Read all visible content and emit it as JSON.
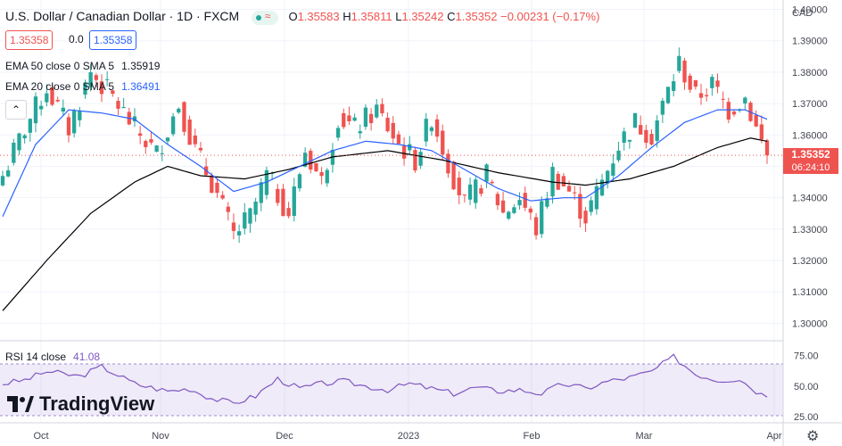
{
  "header": {
    "symbol_title": "U.S. Dollar / Canadian Dollar · 1D · FXCM",
    "open_label": "O",
    "open": "1.35583",
    "high_label": "H",
    "high": "1.35811",
    "low_label": "L",
    "low": "1.35242",
    "close_label": "C",
    "close": "1.35352",
    "change": "−0.00231 (−0.17%)"
  },
  "price_boxes": {
    "sell": "1.35358",
    "spread": "0.0",
    "buy": "1.35358"
  },
  "indicators": {
    "ema50_label": "EMA 50 close 0 SMA 5",
    "ema50_value": "1.35919",
    "ema20_label": "EMA 20 close 0 SMA 5",
    "ema20_value": "1.36491",
    "rsi_label": "RSI 14 close",
    "rsi_value": "41.08"
  },
  "axis": {
    "currency": "CAD",
    "price_ticks": [
      "1.40000",
      "1.39000",
      "1.38000",
      "1.37000",
      "1.36000",
      "1.35000",
      "1.34000",
      "1.33000",
      "1.32000",
      "1.31000",
      "1.30000"
    ],
    "rsi_ticks": [
      "75.00",
      "50.00",
      "25.00"
    ],
    "time_labels": [
      "Oct",
      "Nov",
      "Dec",
      "2023",
      "Feb",
      "Mar",
      "Apr"
    ]
  },
  "current_price": {
    "price": "1.35352",
    "countdown": "06:24:10"
  },
  "brand": {
    "name": "TradingView"
  },
  "colors": {
    "up": "#26a69a",
    "down": "#ef5350",
    "ema20": "#2962ff",
    "ema50": "#000000",
    "rsi": "#7e57c2"
  },
  "chart_data": {
    "type": "candlestick",
    "title": "U.S. Dollar / Canadian Dollar · 1D · FXCM",
    "y_range": [
      1.295,
      1.403
    ],
    "rsi_range": [
      20,
      85
    ],
    "anchors": [
      {
        "i": 0,
        "p": 1.347
      },
      {
        "i": 4,
        "p": 1.362
      },
      {
        "i": 8,
        "p": 1.375
      },
      {
        "i": 12,
        "p": 1.362
      },
      {
        "i": 16,
        "p": 1.38
      },
      {
        "i": 20,
        "p": 1.372
      },
      {
        "i": 24,
        "p": 1.362
      },
      {
        "i": 28,
        "p": 1.354
      },
      {
        "i": 32,
        "p": 1.37
      },
      {
        "i": 35,
        "p": 1.355
      },
      {
        "i": 38,
        "p": 1.345
      },
      {
        "i": 42,
        "p": 1.328
      },
      {
        "i": 45,
        "p": 1.334
      },
      {
        "i": 48,
        "p": 1.347
      },
      {
        "i": 52,
        "p": 1.335
      },
      {
        "i": 55,
        "p": 1.355
      },
      {
        "i": 58,
        "p": 1.345
      },
      {
        "i": 61,
        "p": 1.366
      },
      {
        "i": 64,
        "p": 1.362
      },
      {
        "i": 68,
        "p": 1.368
      },
      {
        "i": 72,
        "p": 1.357
      },
      {
        "i": 75,
        "p": 1.352
      },
      {
        "i": 78,
        "p": 1.366
      },
      {
        "i": 81,
        "p": 1.351
      },
      {
        "i": 84,
        "p": 1.338
      },
      {
        "i": 88,
        "p": 1.347
      },
      {
        "i": 91,
        "p": 1.335
      },
      {
        "i": 94,
        "p": 1.34
      },
      {
        "i": 97,
        "p": 1.33
      },
      {
        "i": 100,
        "p": 1.348
      },
      {
        "i": 103,
        "p": 1.342
      },
      {
        "i": 106,
        "p": 1.334
      },
      {
        "i": 109,
        "p": 1.345
      },
      {
        "i": 112,
        "p": 1.357
      },
      {
        "i": 115,
        "p": 1.364
      },
      {
        "i": 118,
        "p": 1.36
      },
      {
        "i": 121,
        "p": 1.374
      },
      {
        "i": 123,
        "p": 1.383
      },
      {
        "i": 126,
        "p": 1.372
      },
      {
        "i": 129,
        "p": 1.376
      },
      {
        "i": 132,
        "p": 1.368
      },
      {
        "i": 135,
        "p": 1.372
      },
      {
        "i": 137,
        "p": 1.362
      },
      {
        "i": 139,
        "p": 1.3535
      }
    ],
    "rsi": [
      {
        "i": 0,
        "v": 52
      },
      {
        "i": 4,
        "v": 55
      },
      {
        "i": 8,
        "v": 62
      },
      {
        "i": 14,
        "v": 58
      },
      {
        "i": 18,
        "v": 66
      },
      {
        "i": 24,
        "v": 52
      },
      {
        "i": 30,
        "v": 46
      },
      {
        "i": 34,
        "v": 48
      },
      {
        "i": 38,
        "v": 40
      },
      {
        "i": 42,
        "v": 36
      },
      {
        "i": 46,
        "v": 42
      },
      {
        "i": 50,
        "v": 56
      },
      {
        "i": 54,
        "v": 48
      },
      {
        "i": 58,
        "v": 52
      },
      {
        "i": 62,
        "v": 54
      },
      {
        "i": 66,
        "v": 50
      },
      {
        "i": 70,
        "v": 47
      },
      {
        "i": 74,
        "v": 52
      },
      {
        "i": 78,
        "v": 48
      },
      {
        "i": 82,
        "v": 44
      },
      {
        "i": 86,
        "v": 49
      },
      {
        "i": 90,
        "v": 46
      },
      {
        "i": 94,
        "v": 47
      },
      {
        "i": 98,
        "v": 44
      },
      {
        "i": 102,
        "v": 52
      },
      {
        "i": 106,
        "v": 48
      },
      {
        "i": 110,
        "v": 54
      },
      {
        "i": 114,
        "v": 57
      },
      {
        "i": 118,
        "v": 62
      },
      {
        "i": 122,
        "v": 74
      },
      {
        "i": 126,
        "v": 60
      },
      {
        "i": 130,
        "v": 55
      },
      {
        "i": 134,
        "v": 56
      },
      {
        "i": 137,
        "v": 46
      },
      {
        "i": 139,
        "v": 41
      }
    ],
    "ema20": [
      {
        "i": 0,
        "p": 1.334
      },
      {
        "i": 6,
        "p": 1.357
      },
      {
        "i": 12,
        "p": 1.368
      },
      {
        "i": 18,
        "p": 1.367
      },
      {
        "i": 24,
        "p": 1.365
      },
      {
        "i": 30,
        "p": 1.357
      },
      {
        "i": 36,
        "p": 1.35
      },
      {
        "i": 42,
        "p": 1.342
      },
      {
        "i": 48,
        "p": 1.345
      },
      {
        "i": 54,
        "p": 1.35
      },
      {
        "i": 60,
        "p": 1.355
      },
      {
        "i": 66,
        "p": 1.358
      },
      {
        "i": 72,
        "p": 1.357
      },
      {
        "i": 78,
        "p": 1.355
      },
      {
        "i": 84,
        "p": 1.349
      },
      {
        "i": 90,
        "p": 1.343
      },
      {
        "i": 96,
        "p": 1.339
      },
      {
        "i": 102,
        "p": 1.34
      },
      {
        "i": 106,
        "p": 1.34
      },
      {
        "i": 112,
        "p": 1.347
      },
      {
        "i": 118,
        "p": 1.356
      },
      {
        "i": 124,
        "p": 1.364
      },
      {
        "i": 130,
        "p": 1.368
      },
      {
        "i": 135,
        "p": 1.368
      },
      {
        "i": 139,
        "p": 1.365
      }
    ],
    "ema50": [
      {
        "i": 0,
        "p": 1.304
      },
      {
        "i": 8,
        "p": 1.32
      },
      {
        "i": 16,
        "p": 1.335
      },
      {
        "i": 24,
        "p": 1.345
      },
      {
        "i": 30,
        "p": 1.35
      },
      {
        "i": 36,
        "p": 1.347
      },
      {
        "i": 44,
        "p": 1.346
      },
      {
        "i": 52,
        "p": 1.349
      },
      {
        "i": 60,
        "p": 1.353
      },
      {
        "i": 70,
        "p": 1.355
      },
      {
        "i": 80,
        "p": 1.352
      },
      {
        "i": 90,
        "p": 1.348
      },
      {
        "i": 100,
        "p": 1.345
      },
      {
        "i": 106,
        "p": 1.344
      },
      {
        "i": 114,
        "p": 1.346
      },
      {
        "i": 122,
        "p": 1.35
      },
      {
        "i": 130,
        "p": 1.356
      },
      {
        "i": 136,
        "p": 1.359
      },
      {
        "i": 139,
        "p": 1.358
      }
    ]
  }
}
